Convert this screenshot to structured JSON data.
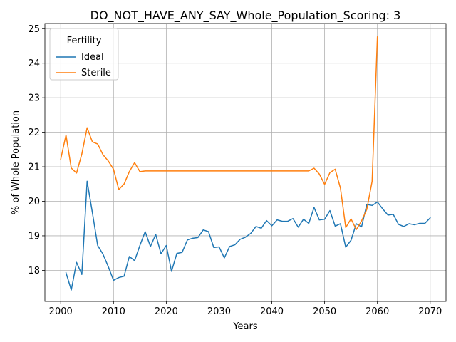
{
  "chart_data": {
    "type": "line",
    "title": "DO_NOT_HAVE_ANY_SAY_Whole_Population_Scoring: 3",
    "xlabel": "Years",
    "ylabel": "% of Whole Population",
    "xlim": [
      1997,
      2073
    ],
    "ylim": [
      17.1,
      25.15
    ],
    "xticks": [
      2000,
      2010,
      2020,
      2030,
      2040,
      2050,
      2060,
      2070
    ],
    "yticks": [
      18,
      19,
      20,
      21,
      22,
      23,
      24,
      25
    ],
    "grid": true,
    "legend": {
      "title": "Fertility",
      "placement": "top-left"
    },
    "series": [
      {
        "name": "Ideal",
        "color": "#1f77b4",
        "x": [
          2001,
          2002,
          2003,
          2004,
          2005,
          2006,
          2007,
          2008,
          2009,
          2010,
          2011,
          2012,
          2013,
          2014,
          2015,
          2016,
          2017,
          2018,
          2019,
          2020,
          2021,
          2022,
          2023,
          2024,
          2025,
          2026,
          2027,
          2028,
          2029,
          2030,
          2031,
          2032,
          2033,
          2034,
          2035,
          2036,
          2037,
          2038,
          2039,
          2040,
          2041,
          2042,
          2043,
          2044,
          2045,
          2046,
          2047,
          2048,
          2049,
          2050,
          2051,
          2052,
          2053,
          2054,
          2055,
          2056,
          2057,
          2058,
          2059,
          2060,
          2061,
          2062,
          2063,
          2064,
          2065,
          2066,
          2067,
          2068,
          2069,
          2070
        ],
        "y": [
          17.93,
          17.43,
          18.23,
          17.88,
          20.58,
          19.67,
          18.72,
          18.47,
          18.11,
          17.71,
          17.79,
          17.83,
          18.4,
          18.28,
          18.72,
          19.12,
          18.69,
          19.04,
          18.48,
          18.72,
          17.97,
          18.49,
          18.52,
          18.88,
          18.93,
          18.95,
          19.17,
          19.12,
          18.66,
          18.68,
          18.36,
          18.69,
          18.74,
          18.9,
          18.96,
          19.07,
          19.27,
          19.22,
          19.44,
          19.29,
          19.46,
          19.42,
          19.42,
          19.5,
          19.25,
          19.48,
          19.36,
          19.82,
          19.46,
          19.48,
          19.73,
          19.28,
          19.35,
          18.67,
          18.87,
          19.35,
          19.26,
          19.91,
          19.88,
          19.98,
          19.78,
          19.6,
          19.62,
          19.33,
          19.27,
          19.35,
          19.32,
          19.36,
          19.36,
          19.52
        ]
      },
      {
        "name": "Sterile",
        "color": "#ff7f0e",
        "x": [
          2000,
          2001,
          2002,
          2003,
          2004,
          2005,
          2006,
          2007,
          2008,
          2009,
          2010,
          2011,
          2012,
          2013,
          2014,
          2015,
          2016,
          2017,
          2018,
          2019,
          2020,
          2021,
          2022,
          2023,
          2024,
          2025,
          2026,
          2027,
          2028,
          2029,
          2030,
          2031,
          2032,
          2033,
          2034,
          2035,
          2036,
          2037,
          2038,
          2039,
          2040,
          2041,
          2042,
          2043,
          2044,
          2045,
          2046,
          2047,
          2048,
          2049,
          2050,
          2051,
          2052,
          2053,
          2054,
          2055,
          2056,
          2057,
          2058,
          2059,
          2060
        ],
        "y": [
          21.22,
          21.92,
          20.96,
          20.82,
          21.37,
          22.13,
          21.72,
          21.66,
          21.35,
          21.17,
          20.93,
          20.34,
          20.5,
          20.86,
          21.12,
          20.86,
          20.88,
          20.88,
          20.88,
          20.88,
          20.88,
          20.88,
          20.88,
          20.88,
          20.88,
          20.88,
          20.88,
          20.88,
          20.88,
          20.88,
          20.88,
          20.88,
          20.88,
          20.88,
          20.88,
          20.88,
          20.88,
          20.88,
          20.88,
          20.88,
          20.88,
          20.88,
          20.88,
          20.88,
          20.88,
          20.88,
          20.88,
          20.88,
          20.96,
          20.79,
          20.49,
          20.83,
          20.93,
          20.38,
          19.24,
          19.49,
          19.18,
          19.43,
          19.77,
          20.58,
          24.76
        ]
      }
    ]
  }
}
